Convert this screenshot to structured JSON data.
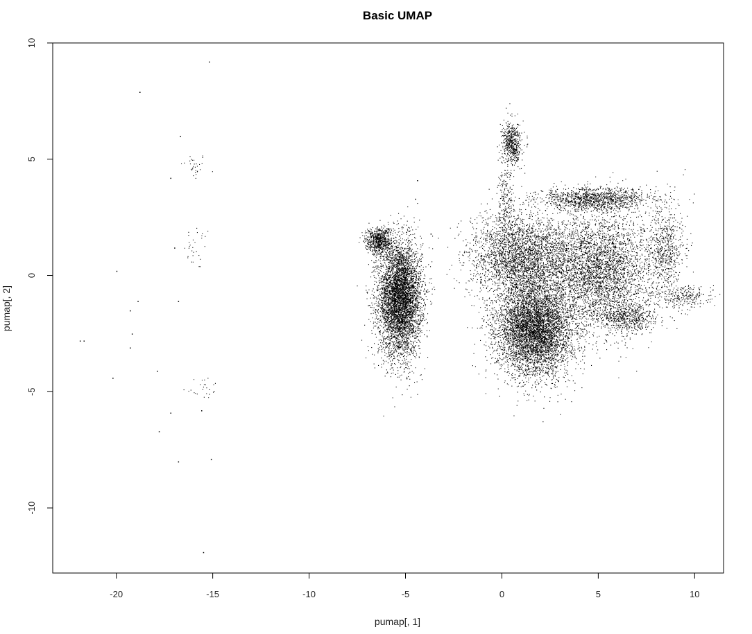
{
  "chart_data": {
    "type": "scatter",
    "title": "Basic UMAP",
    "xlabel": "pumap[, 1]",
    "ylabel": "pumap[, 2]",
    "xlim": [
      -23.3,
      11.5
    ],
    "ylim": [
      -12.8,
      10.0
    ],
    "xticks": [
      "-20",
      "-15",
      "-10",
      "-5",
      "0",
      "5",
      "10"
    ],
    "yticks": [
      "-10",
      "-5",
      "0",
      "5",
      "10"
    ],
    "grid": false,
    "legend": "none",
    "point_color": "#000000",
    "clusters": [
      {
        "cx": -16.0,
        "cy": 4.7,
        "sx": 0.35,
        "sy": 0.3,
        "n": 30
      },
      {
        "cx": -15.8,
        "cy": 1.2,
        "sx": 0.35,
        "sy": 0.5,
        "n": 30
      },
      {
        "cx": -15.6,
        "cy": -4.8,
        "sx": 0.5,
        "sy": 0.25,
        "n": 25
      },
      {
        "cx": -5.3,
        "cy": -1.0,
        "sx": 0.55,
        "sy": 1.2,
        "n": 5200
      },
      {
        "cx": -6.4,
        "cy": 1.5,
        "sx": 0.35,
        "sy": 0.3,
        "n": 700
      },
      {
        "cx": 0.5,
        "cy": 5.7,
        "sx": 0.25,
        "sy": 0.45,
        "n": 550
      },
      {
        "cx": 0.2,
        "cy": 3.2,
        "sx": 0.2,
        "sy": 0.8,
        "n": 200
      },
      {
        "cx": 1.7,
        "cy": -2.3,
        "sx": 1.0,
        "sy": 1.0,
        "n": 5500
      },
      {
        "cx": 1.0,
        "cy": 0.8,
        "sx": 1.3,
        "sy": 0.9,
        "n": 3000
      },
      {
        "cx": 5.0,
        "cy": 0.2,
        "sx": 1.4,
        "sy": 1.3,
        "n": 3800
      },
      {
        "cx": 4.8,
        "cy": 3.3,
        "sx": 1.4,
        "sy": 0.25,
        "n": 1200
      },
      {
        "cx": 8.5,
        "cy": 1.2,
        "sx": 0.5,
        "sy": 1.0,
        "n": 600
      },
      {
        "cx": 9.4,
        "cy": -0.9,
        "sx": 0.7,
        "sy": 0.25,
        "n": 250
      },
      {
        "cx": 6.5,
        "cy": -1.8,
        "sx": 0.7,
        "sy": 0.3,
        "n": 500
      }
    ],
    "sparse_points": [
      {
        "x": -15.2,
        "y": 9.2
      },
      {
        "x": -18.8,
        "y": 7.9
      },
      {
        "x": -16.7,
        "y": 6.0
      },
      {
        "x": -17.2,
        "y": 4.2
      },
      {
        "x": -20.0,
        "y": 0.2
      },
      {
        "x": -19.3,
        "y": -1.5
      },
      {
        "x": -19.2,
        "y": -2.5
      },
      {
        "x": -19.3,
        "y": -3.1
      },
      {
        "x": -18.9,
        "y": -1.1
      },
      {
        "x": -16.8,
        "y": -1.1
      },
      {
        "x": -21.9,
        "y": -2.8
      },
      {
        "x": -21.7,
        "y": -2.8
      },
      {
        "x": -20.2,
        "y": -4.4
      },
      {
        "x": -17.9,
        "y": -4.1
      },
      {
        "x": -17.2,
        "y": -5.9
      },
      {
        "x": -17.8,
        "y": -6.7
      },
      {
        "x": -16.8,
        "y": -8.0
      },
      {
        "x": -15.1,
        "y": -7.9
      },
      {
        "x": -15.5,
        "y": -11.9
      },
      {
        "x": -15.6,
        "y": -5.8
      },
      {
        "x": -17.0,
        "y": 1.2
      },
      {
        "x": -4.4,
        "y": 4.1
      },
      {
        "x": -4.5,
        "y": 3.3
      },
      {
        "x": -3.7,
        "y": 1.8
      },
      {
        "x": 1.7,
        "y": 3.6
      },
      {
        "x": 7.8,
        "y": -0.3
      }
    ]
  }
}
